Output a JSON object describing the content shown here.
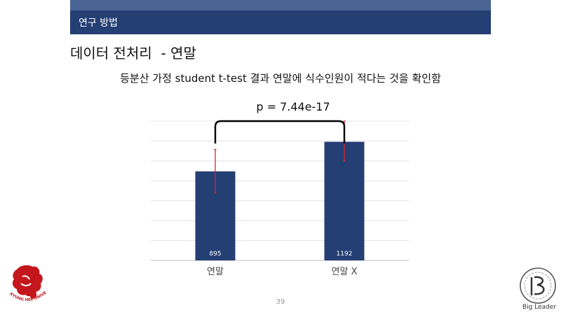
{
  "header": {
    "section_label": "연구 방법"
  },
  "slide": {
    "title": "데이터 전처리  - 연말",
    "subtitle": "등분산 가정 student t-test 결과 연말에 식수인원이 적다는 것을 확인함",
    "annotation": "p = 7.44e-17",
    "page_number": "39"
  },
  "logos": {
    "left": {
      "text": "KYUNG HEE UNIVERSITY",
      "color": "#c4161c"
    },
    "right": {
      "text": "Big Leader"
    }
  },
  "chart_data": {
    "type": "bar",
    "categories": [
      "연말",
      "연말 X"
    ],
    "values": [
      895,
      1192
    ],
    "data_labels": [
      "895",
      "1192"
    ],
    "error_bars": [
      {
        "low": 675,
        "high": 1115
      },
      {
        "low": 1000,
        "high": 1400
      }
    ],
    "ylim": [
      0,
      1400
    ],
    "gridlines": 7,
    "grid": true,
    "bar_color": "#243f74",
    "error_color": "#d62728",
    "title": "",
    "xlabel": "",
    "ylabel": ""
  }
}
